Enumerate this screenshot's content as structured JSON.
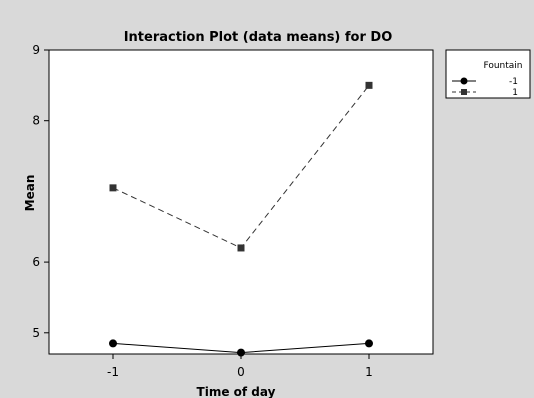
{
  "chart_data": {
    "type": "line",
    "title": "Interaction Plot (data means) for DO",
    "xlabel": "Time of day",
    "ylabel": "Mean",
    "x": [
      -1,
      0,
      1
    ],
    "x_ticks": [
      "-1",
      "0",
      "1"
    ],
    "xlim": [
      -1.5,
      1.5
    ],
    "ylim": [
      4.7,
      9.0
    ],
    "y_ticks": [
      "5",
      "6",
      "8",
      "9"
    ],
    "grid": false,
    "legend": {
      "title": "Fountain",
      "position": "right"
    },
    "series": [
      {
        "name": "-1",
        "values": [
          4.85,
          4.72,
          4.85
        ],
        "marker": "circle",
        "line": "solid",
        "color": "#000000"
      },
      {
        "name": "1",
        "values": [
          7.05,
          6.2,
          8.5
        ],
        "marker": "square",
        "line": "dashed",
        "color": "#333333"
      }
    ]
  }
}
